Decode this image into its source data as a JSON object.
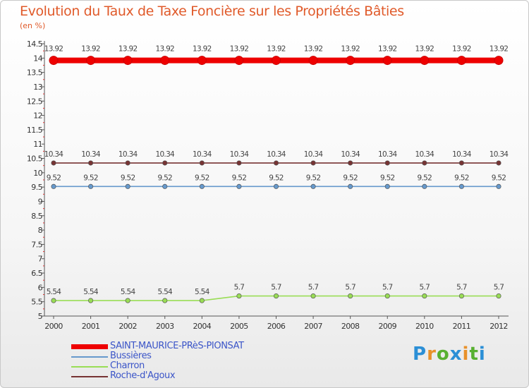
{
  "chart_data": {
    "type": "line",
    "title": "Evolution du Taux de Taxe Foncière sur les Propriétés Bâties",
    "unit_label": "(en %)",
    "ylim": [
      5,
      14.5
    ],
    "y_ticks": [
      "5",
      "5.5",
      "6",
      "6.5",
      "7",
      "7.5",
      "8",
      "8.5",
      "9",
      "9.5",
      "10",
      "10.5",
      "11",
      "11.5",
      "12",
      "12.5",
      "13",
      "13.5",
      "14",
      "14.5"
    ],
    "x": [
      "2000",
      "2001",
      "2002",
      "2003",
      "2004",
      "2005",
      "2006",
      "2007",
      "2008",
      "2009",
      "2010",
      "2011",
      "2012"
    ],
    "series": [
      {
        "name": "SAINT-MAURICE-PRèS-PIONSAT",
        "color": "#ee0000",
        "values": [
          13.92,
          13.92,
          13.92,
          13.92,
          13.92,
          13.92,
          13.92,
          13.92,
          13.92,
          13.92,
          13.92,
          13.92,
          13.92
        ],
        "labels": [
          "13.92",
          "13.92",
          "13.92",
          "13.92",
          "13.92",
          "13.92",
          "13.92",
          "13.92",
          "13.92",
          "13.92",
          "13.92",
          "13.92",
          "13.92"
        ]
      },
      {
        "name": "Bussières",
        "color": "#6699cc",
        "values": [
          9.52,
          9.52,
          9.52,
          9.52,
          9.52,
          9.52,
          9.52,
          9.52,
          9.52,
          9.52,
          9.52,
          9.52,
          9.52
        ],
        "labels": [
          "9.52",
          "9.52",
          "9.52",
          "9.52",
          "9.52",
          "9.52",
          "9.52",
          "9.52",
          "9.52",
          "9.52",
          "9.52",
          "9.52",
          "9.52"
        ]
      },
      {
        "name": "Charron",
        "color": "#99dd55",
        "values": [
          5.54,
          5.54,
          5.54,
          5.54,
          5.54,
          5.7,
          5.7,
          5.7,
          5.7,
          5.7,
          5.7,
          5.7,
          5.7
        ],
        "labels": [
          "5.54",
          "5.54",
          "5.54",
          "5.54",
          "5.54",
          "5.7",
          "5.7",
          "5.7",
          "5.7",
          "5.7",
          "5.7",
          "5.7",
          "5.7"
        ]
      },
      {
        "name": "Roche-d'Agoux",
        "color": "#773333",
        "values": [
          10.34,
          10.34,
          10.34,
          10.34,
          10.34,
          10.34,
          10.34,
          10.34,
          10.34,
          10.34,
          10.34,
          10.34,
          10.34
        ],
        "labels": [
          "10.34",
          "10.34",
          "10.34",
          "10.34",
          "10.34",
          "10.34",
          "10.34",
          "10.34",
          "10.34",
          "10.34",
          "10.34",
          "10.34",
          "10.34"
        ]
      }
    ],
    "legend": [
      {
        "name": "SAINT-MAURICE-PRèS-PIONSAT",
        "color": "#ee0000"
      },
      {
        "name": "Bussières",
        "color": "#6699cc"
      },
      {
        "name": "Charron",
        "color": "#99dd55"
      },
      {
        "name": "Roche-d'Agoux",
        "color": "#773333"
      }
    ]
  },
  "brand": {
    "letters": [
      "P",
      "r",
      "o",
      "x",
      "i",
      "t",
      "i"
    ],
    "colors": [
      "#2b8fd6",
      "#e8912a",
      "#58b030",
      "#2b8fd6",
      "#e8912a",
      "#58b030",
      "#2b8fd6"
    ]
  }
}
